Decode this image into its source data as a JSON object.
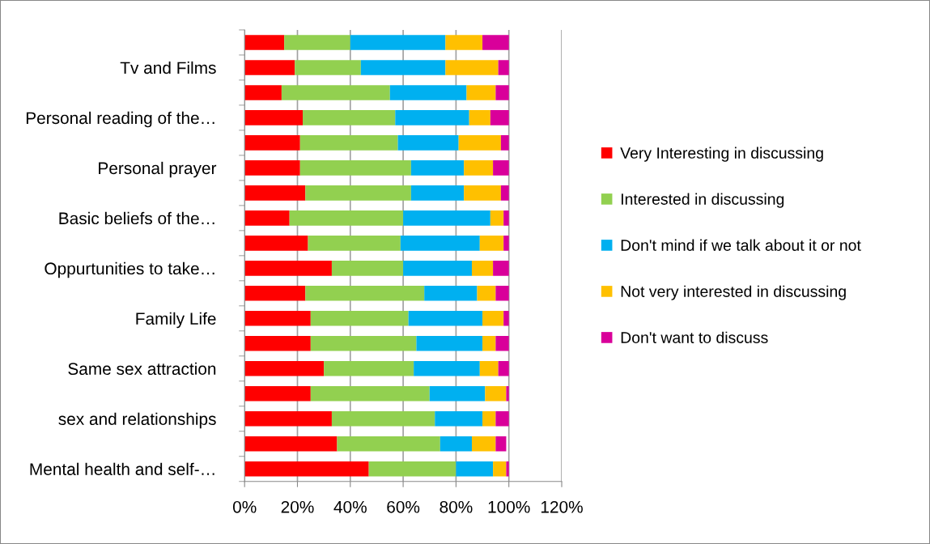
{
  "chart_data": {
    "type": "bar",
    "orientation": "horizontal",
    "stacked": true,
    "categories": [
      null,
      "Tv and Films",
      null,
      "Personal reading of the…",
      null,
      "Personal prayer",
      null,
      "Basic beliefs of the…",
      null,
      "Oppurtunities to take…",
      null,
      "Family Life",
      null,
      "Same sex attraction",
      null,
      "sex and relationships",
      null,
      "Mental health and self-…"
    ],
    "series": [
      {
        "name": "Very Interesting in discussing",
        "color": "#ff0000",
        "values": [
          15,
          19,
          14,
          22,
          21,
          21,
          23,
          17,
          24,
          33,
          23,
          25,
          25,
          30,
          25,
          33,
          35,
          47
        ]
      },
      {
        "name": "Interested in discussing",
        "color": "#92d050",
        "values": [
          25,
          25,
          41,
          35,
          37,
          42,
          40,
          43,
          35,
          27,
          45,
          37,
          40,
          34,
          45,
          39,
          39,
          33
        ]
      },
      {
        "name": "Don't mind if we talk about it or not",
        "color": "#00b0f0",
        "values": [
          36,
          32,
          29,
          28,
          23,
          20,
          20,
          33,
          30,
          26,
          20,
          28,
          25,
          25,
          21,
          18,
          12,
          14
        ]
      },
      {
        "name": "Not very interested in discussing",
        "color": "#ffc000",
        "values": [
          14,
          20,
          11,
          8,
          16,
          11,
          14,
          5,
          9,
          8,
          7,
          8,
          5,
          7,
          8,
          5,
          9,
          5
        ]
      },
      {
        "name": "Don't want to discuss",
        "color": "#d9009a",
        "values": [
          10,
          4,
          5,
          7,
          3,
          6,
          3,
          2,
          2,
          6,
          5,
          2,
          5,
          4,
          1,
          5,
          4,
          1
        ]
      }
    ],
    "xlim": [
      0,
      120
    ],
    "xticks": [
      {
        "value": 0,
        "label": "0%"
      },
      {
        "value": 20,
        "label": "20%"
      },
      {
        "value": 40,
        "label": "40%"
      },
      {
        "value": 60,
        "label": "60%"
      },
      {
        "value": 80,
        "label": "80%"
      },
      {
        "value": 100,
        "label": "100%"
      },
      {
        "value": 120,
        "label": "120%"
      }
    ],
    "grid": "x",
    "legend": "right"
  }
}
